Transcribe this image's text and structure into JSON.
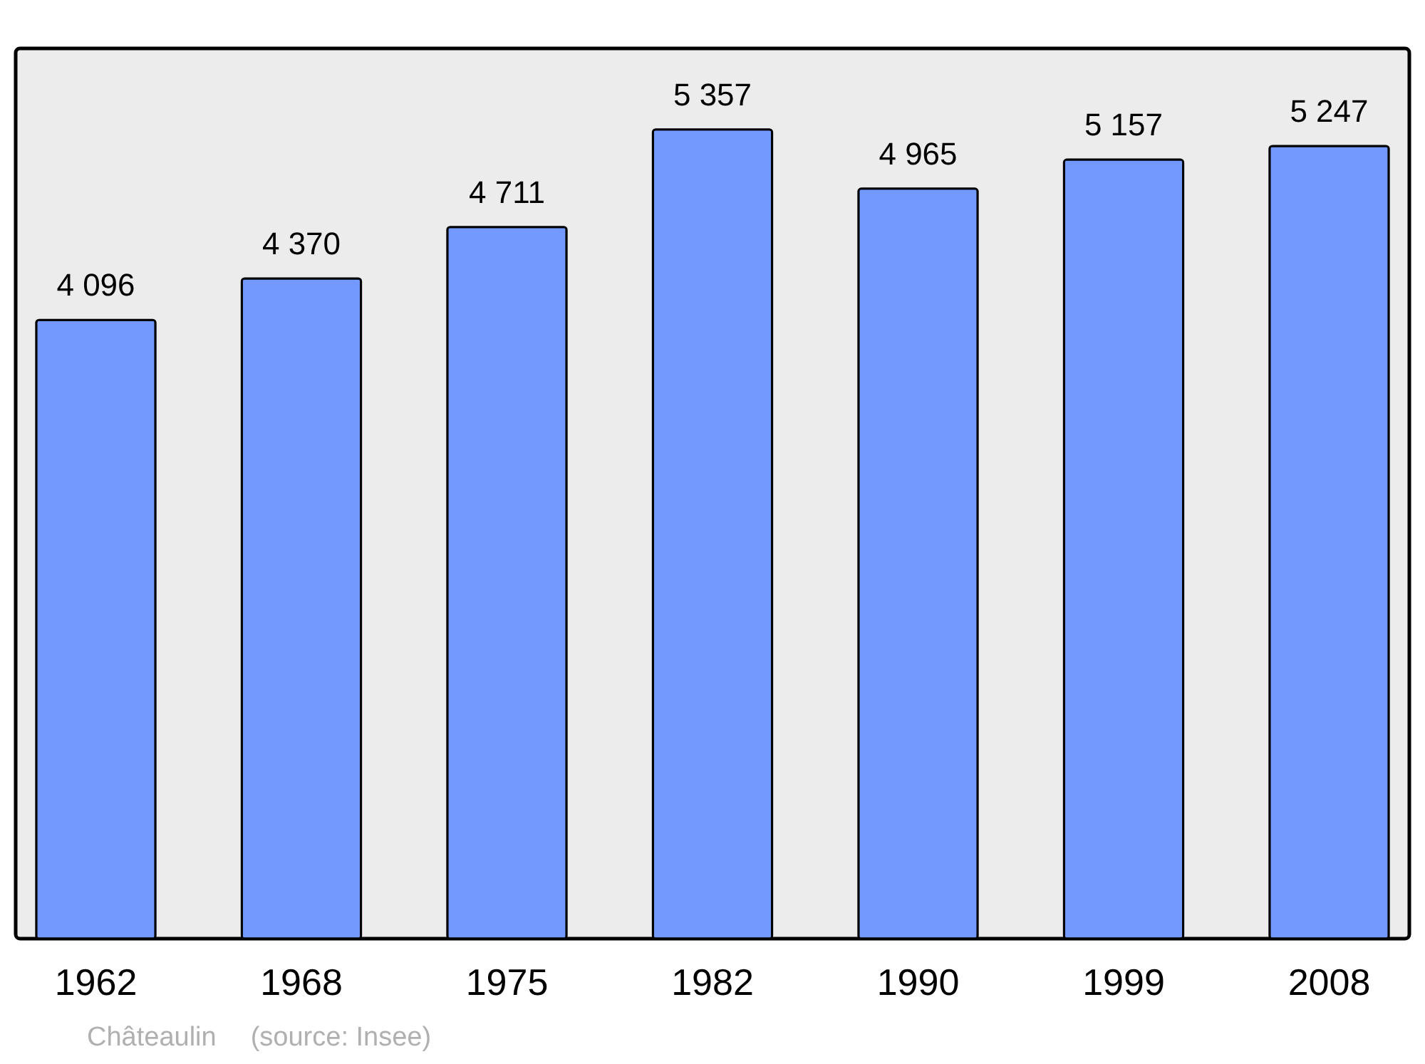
{
  "chart_data": {
    "type": "bar",
    "categories": [
      "1962",
      "1968",
      "1975",
      "1982",
      "1990",
      "1999",
      "2008"
    ],
    "values": [
      4096,
      4370,
      4711,
      5357,
      4965,
      5157,
      5247
    ],
    "value_labels": [
      "4 096",
      "4 370",
      "4 711",
      "5 357",
      "4 965",
      "5 157",
      "5 247"
    ],
    "color": "#7399ff",
    "annotations": [
      "Châteaulin",
      "(source: Insee)"
    ]
  }
}
